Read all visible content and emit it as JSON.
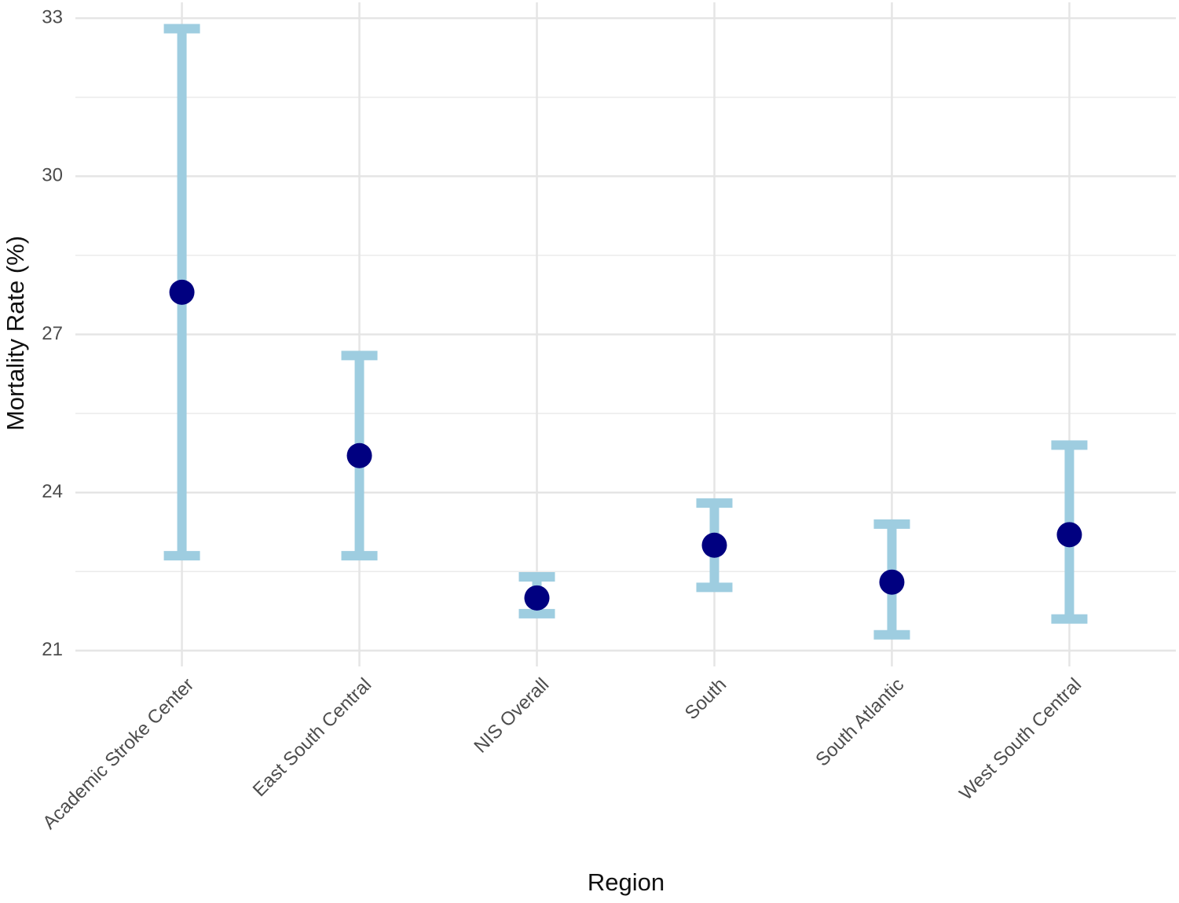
{
  "chart_data": {
    "type": "pointrange",
    "x_label": "Region",
    "y_label": "Mortality Rate (%)",
    "categories": [
      "Academic Stroke Center",
      "East South Central",
      "NIS Overall",
      "South",
      "South Atlantic",
      "West South Central"
    ],
    "values": [
      27.8,
      24.7,
      22.0,
      23.0,
      22.3,
      23.2
    ],
    "lower": [
      22.8,
      22.8,
      21.7,
      22.2,
      21.3,
      21.6
    ],
    "upper": [
      32.8,
      26.6,
      22.4,
      23.8,
      23.4,
      24.9
    ],
    "point_color": "#000080",
    "errorbar_color": "#9ecde0",
    "ylim": [
      20.7,
      33.3
    ],
    "yticks": [
      21,
      24,
      27,
      30,
      33
    ],
    "minor_yticks": [
      22.5,
      25.5,
      28.5,
      31.5
    ],
    "grid": true
  }
}
